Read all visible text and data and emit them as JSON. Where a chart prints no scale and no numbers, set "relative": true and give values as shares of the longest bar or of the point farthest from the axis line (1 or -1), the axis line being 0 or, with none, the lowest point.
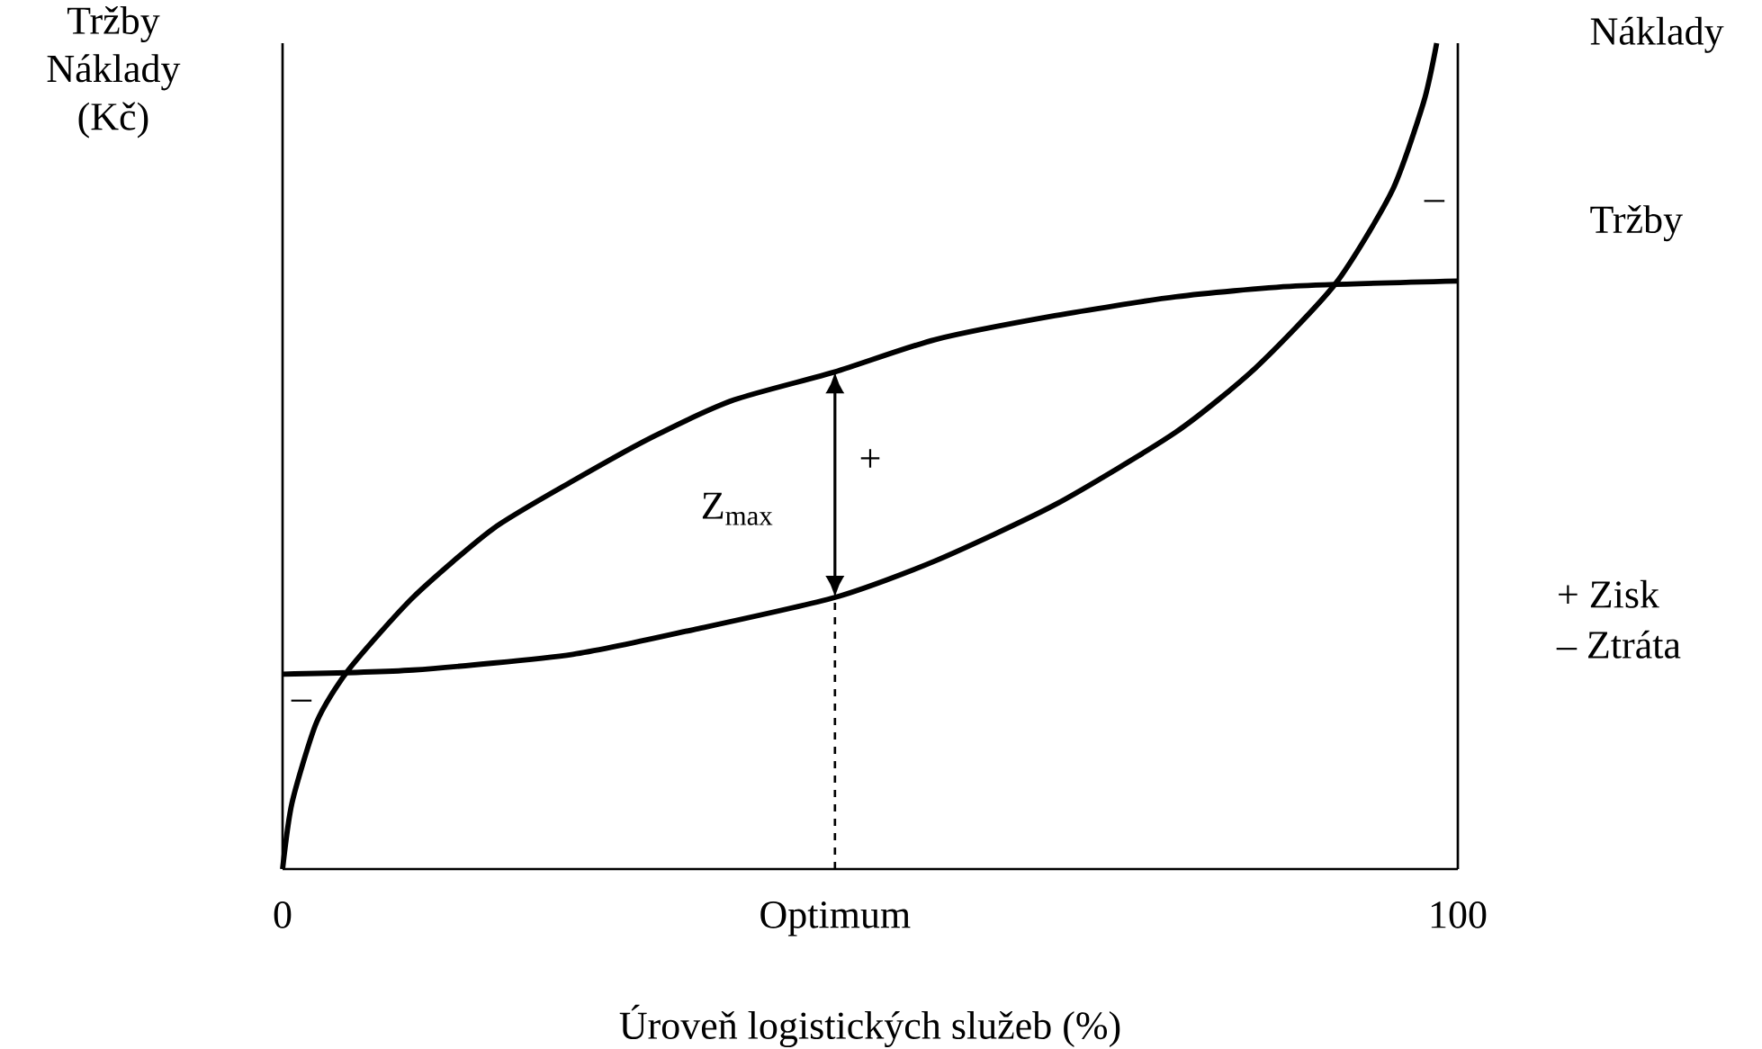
{
  "chart_data": {
    "type": "line",
    "relative": true,
    "xlabel": "Úroveň logistických služeb (%)",
    "ylabel": "Tržby Náklady (Kč)",
    "xlim": [
      0,
      100
    ],
    "xticks": [
      0,
      {
        "value": 47,
        "label": "Optimum"
      },
      100
    ],
    "series": [
      {
        "name": "Tržby",
        "color": "#000000",
        "x": [
          0,
          0.8,
          2.9,
          5.6,
          11.1,
          17.9,
          24.7,
          31.6,
          38.4,
          47,
          55.5,
          65.7,
          76,
          86.2,
          100
        ],
        "values": [
          0,
          0.08,
          0.178,
          0.241,
          0.329,
          0.412,
          0.47,
          0.524,
          0.568,
          0.602,
          0.641,
          0.67,
          0.693,
          0.706,
          0.712
        ]
      },
      {
        "name": "Náklady",
        "color": "#000000",
        "x": [
          0,
          11.1,
          24.7,
          35,
          47,
          55.5,
          65.7,
          76,
          82.8,
          89.6,
          94.4,
          97.1,
          98.2
        ],
        "values": [
          0.236,
          0.241,
          0.26,
          0.29,
          0.329,
          0.373,
          0.441,
          0.529,
          0.607,
          0.709,
          0.821,
          0.929,
          1.0
        ]
      }
    ],
    "ref_lines": [
      {
        "axis": "x",
        "value": 47,
        "line_style": "dashed"
      }
    ],
    "annotations": [
      "Z$_{max}$",
      "+",
      "–",
      "–",
      "+ Zisk",
      "– Ztráta"
    ],
    "grid": false,
    "line_style": "solid",
    "marker": "none"
  }
}
